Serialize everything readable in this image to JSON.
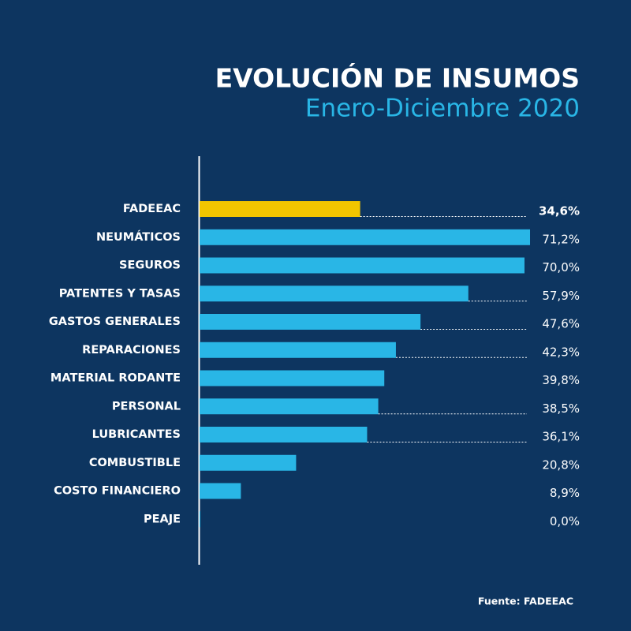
{
  "chart_data": {
    "type": "hbar",
    "title": "EVOLUCIÓN DE INSUMOS",
    "subtitle": "Enero-Diciembre 2020",
    "categories": [
      "FADEEAC",
      "NEUMÁTICOS",
      "SEGUROS",
      "PATENTES Y TASAS",
      "GASTOS GENERALES",
      "REPARACIONES",
      "MATERIAL RODANTE",
      "PERSONAL",
      "LUBRICANTES",
      "COMBUSTIBLE",
      "COSTO FINANCIERO",
      "PEAJE"
    ],
    "values": [
      34.6,
      71.2,
      70.0,
      57.9,
      47.6,
      42.3,
      39.8,
      38.5,
      36.1,
      20.8,
      8.9,
      0.0
    ],
    "value_labels": [
      "34,6%",
      "71,2%",
      "70,0%",
      "57,9%",
      "47,6%",
      "42,3%",
      "39,8%",
      "38,5%",
      "36,1%",
      "20,8%",
      "8,9%",
      "0,0%"
    ],
    "colors": [
      "#f2c500",
      "#29b6e6",
      "#29b6e6",
      "#29b6e6",
      "#29b6e6",
      "#29b6e6",
      "#29b6e6",
      "#29b6e6",
      "#29b6e6",
      "#29b6e6",
      "#29b6e6",
      "#29b6e6"
    ],
    "source": "Fuente: FADEEAC"
  }
}
